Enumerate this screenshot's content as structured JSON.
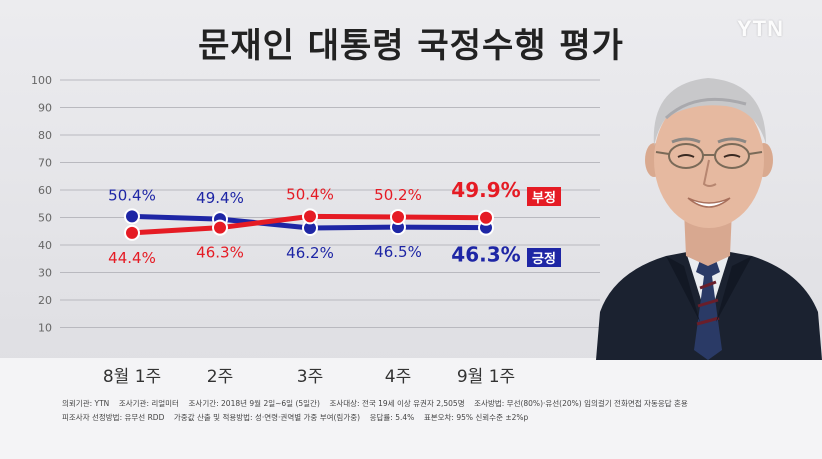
{
  "title": "문재인 대통령 국정수행 평가",
  "logo": "YTN",
  "colors": {
    "negative": "#e51b24",
    "positive": "#1e26a5",
    "grid": "#b9b9bf"
  },
  "chart_data": {
    "type": "line",
    "title": "문재인 대통령 국정수행 평가",
    "categories": [
      "8월 1주",
      "2주",
      "3주",
      "4주",
      "9월 1주"
    ],
    "ylim": [
      0,
      100
    ],
    "yticks": [
      "10",
      "20",
      "30",
      "40",
      "50",
      "60",
      "70",
      "80",
      "90",
      "100"
    ],
    "grid": true,
    "series": [
      {
        "name": "부정",
        "color": "#e51b24",
        "values": [
          44.4,
          46.3,
          50.4,
          50.2,
          49.9
        ],
        "labels": [
          "44.4%",
          "46.3%",
          "50.4%",
          "50.2%",
          "49.9%"
        ]
      },
      {
        "name": "긍정",
        "color": "#1e26a5",
        "values": [
          50.4,
          49.4,
          46.2,
          46.5,
          46.3
        ],
        "labels": [
          "50.4%",
          "49.4%",
          "46.2%",
          "46.5%",
          "46.3%"
        ]
      }
    ]
  },
  "footer": {
    "line1": [
      "의뢰기관: YTN",
      "조사기관: 리얼미터",
      "조사기간: 2018년 9월 2일~6일 (5일간)",
      "조사대상: 전국 19세 이상 유권자 2,505명",
      "조사방법: 무선(80%)·유선(20%) 임의걸기 전화면접 자동응답 혼용"
    ],
    "line2": [
      "피조사자 선정방법: 유무선 RDD",
      "가중값 산출 및 적용방법: 성·연령·권역별 가중 부여(림가중)",
      "응답률: 5.4%",
      "표본오차: 95% 신뢰수준 ±2%p"
    ]
  }
}
